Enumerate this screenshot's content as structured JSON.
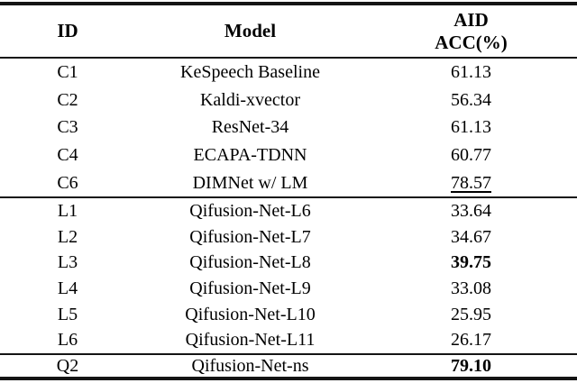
{
  "table": {
    "header": {
      "id": "ID",
      "model": "Model",
      "acc_line1": "AID",
      "acc_line2": "ACC(%)"
    },
    "sections": [
      {
        "name": "baseline-models",
        "rows": [
          {
            "id": "C1",
            "model": "KeSpeech Baseline",
            "acc": "61.13",
            "acc_style": "normal"
          },
          {
            "id": "C2",
            "model": "Kaldi-xvector",
            "acc": "56.34",
            "acc_style": "normal"
          },
          {
            "id": "C3",
            "model": "ResNet-34",
            "acc": "61.13",
            "acc_style": "normal"
          },
          {
            "id": "C4",
            "model": "ECAPA-TDNN",
            "acc": "60.77",
            "acc_style": "normal"
          },
          {
            "id": "C6",
            "model": "DIMNet w/ LM",
            "acc": "78.57",
            "acc_style": "underline"
          }
        ]
      },
      {
        "name": "qifusion-layer-models",
        "rows": [
          {
            "id": "L1",
            "model": "Qifusion-Net-L6",
            "acc": "33.64",
            "acc_style": "normal"
          },
          {
            "id": "L2",
            "model": "Qifusion-Net-L7",
            "acc": "34.67",
            "acc_style": "normal"
          },
          {
            "id": "L3",
            "model": "Qifusion-Net-L8",
            "acc": "39.75",
            "acc_style": "bold"
          },
          {
            "id": "L4",
            "model": "Qifusion-Net-L9",
            "acc": "33.08",
            "acc_style": "normal"
          },
          {
            "id": "L5",
            "model": "Qifusion-Net-L10",
            "acc": "25.95",
            "acc_style": "normal"
          },
          {
            "id": "L6",
            "model": "Qifusion-Net-L11",
            "acc": "26.17",
            "acc_style": "normal"
          }
        ]
      },
      {
        "name": "final-model",
        "rows": [
          {
            "id": "Q2",
            "model": "Qifusion-Net-ns",
            "acc": "79.10",
            "acc_style": "bold"
          }
        ]
      }
    ],
    "colors": {
      "text": "#000000",
      "rule": "#141414",
      "background": "#ffffff"
    }
  }
}
